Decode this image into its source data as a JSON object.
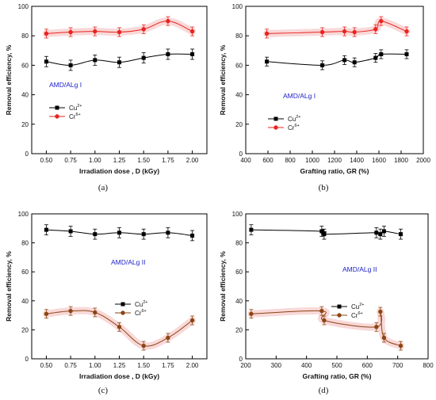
{
  "colors": {
    "cu": "#000000",
    "cr_red": "#e8241f",
    "cr_brown": "#8b4513",
    "title_blue": "#1f22c8",
    "band": "#f6c8c8"
  },
  "chart_data": [
    {
      "type": "line",
      "tag": "(a)",
      "title": "AMD/ALg I",
      "xlabel": "Irradiation dose  , D (kGy)",
      "ylabel": "Removal efficiency, %",
      "xlim": [
        0.35,
        2.15
      ],
      "ylim": [
        0,
        100
      ],
      "xticks": [
        "0.50",
        "0.75",
        "1.00",
        "1.25",
        "1.50",
        "1.75",
        "2.00"
      ],
      "xtick_values": [
        0.5,
        0.75,
        1.0,
        1.25,
        1.5,
        1.75,
        2.0
      ],
      "yticks": [
        "0",
        "20",
        "40",
        "60",
        "80",
        "100"
      ],
      "legend_position": "center-left",
      "series": [
        {
          "name": "Cu²⁺",
          "label": "Cu",
          "sup": "2+",
          "color": "#000000",
          "marker": "square",
          "x": [
            0.5,
            0.75,
            1.0,
            1.25,
            1.5,
            1.75,
            2.0
          ],
          "y": [
            62.5,
            60,
            63.5,
            62,
            65,
            67.5,
            67.5
          ],
          "err": 3.5,
          "band": false
        },
        {
          "name": "Cr⁶⁺",
          "label": "Cr",
          "sup": "6+",
          "color": "#e8241f",
          "marker": "circle",
          "x": [
            0.5,
            0.75,
            1.0,
            1.25,
            1.5,
            1.75,
            2.0
          ],
          "y": [
            81.5,
            82.5,
            83,
            82.5,
            84.5,
            90,
            83
          ],
          "err": 3,
          "band": true
        }
      ]
    },
    {
      "type": "line",
      "tag": "(b)",
      "title": "AMD/ALg I",
      "xlabel": "Grafting ratio, GR (%)",
      "ylabel": "Removal efficiency, %",
      "xlim": [
        400,
        2000
      ],
      "ylim": [
        0,
        100
      ],
      "xticks": [
        "400",
        "600",
        "800",
        "1000",
        "1200",
        "1400",
        "1600",
        "1800",
        "2000"
      ],
      "xtick_values": [
        400,
        600,
        800,
        1000,
        1200,
        1400,
        1600,
        1800,
        2000
      ],
      "yticks": [
        "0",
        "20",
        "40",
        "60",
        "80",
        "100"
      ],
      "legend_position": "center-left",
      "series": [
        {
          "name": "Cu²⁺",
          "label": "Cu",
          "sup": "2+",
          "color": "#000000",
          "marker": "square",
          "x": [
            590,
            1090,
            1290,
            1380,
            1570,
            1620,
            1850
          ],
          "y": [
            62.5,
            60,
            63.5,
            62,
            65,
            67.5,
            67.5
          ],
          "err": 3,
          "band": false
        },
        {
          "name": "Cr⁶⁺",
          "label": "Cr",
          "sup": "6+",
          "color": "#e8241f",
          "marker": "circle",
          "x": [
            590,
            1090,
            1290,
            1380,
            1570,
            1620,
            1850
          ],
          "y": [
            81.5,
            82.5,
            83,
            82.5,
            84.5,
            90,
            83
          ],
          "err": 3,
          "band": true
        }
      ]
    },
    {
      "type": "line",
      "tag": "(c)",
      "title": "AMD/ALg II",
      "xlabel": "Irradiation dose  , D (kGy)",
      "ylabel": "Removal efficiency, %",
      "xlim": [
        0.35,
        2.15
      ],
      "ylim": [
        0,
        100
      ],
      "xticks": [
        "0.50",
        "0.75",
        "1.00",
        "1.25",
        "1.50",
        "1.75",
        "2.00"
      ],
      "xtick_values": [
        0.5,
        0.75,
        1.0,
        1.25,
        1.5,
        1.75,
        2.0
      ],
      "yticks": [
        "0",
        "20",
        "40",
        "60",
        "80",
        "100"
      ],
      "legend_position": "center-right",
      "series": [
        {
          "name": "Cu²⁺",
          "label": "Cu",
          "sup": "2+",
          "color": "#000000",
          "marker": "square",
          "x": [
            0.5,
            0.75,
            1.0,
            1.25,
            1.5,
            1.75,
            2.0
          ],
          "y": [
            89,
            88,
            86,
            87,
            86,
            87,
            85
          ],
          "err": 3.5,
          "band": false
        },
        {
          "name": "Cr⁶⁺",
          "label": "Cr",
          "sup": "6+",
          "color": "#8b4513",
          "marker": "circle",
          "x": [
            0.5,
            0.75,
            1.0,
            1.25,
            1.5,
            1.75,
            2.0
          ],
          "y": [
            31,
            33,
            32,
            22,
            9,
            14.5,
            26.5
          ],
          "err": 3,
          "band": true
        }
      ]
    },
    {
      "type": "line",
      "tag": "(d)",
      "title": "AMD/ALg  II",
      "xlabel": "Grafting ratio, GR (%)",
      "ylabel": "Removal efficiency, %",
      "xlim": [
        200,
        800
      ],
      "ylim": [
        0,
        100
      ],
      "xticks": [
        "200",
        "300",
        "400",
        "500",
        "600",
        "700",
        "800"
      ],
      "xtick_values": [
        200,
        300,
        400,
        500,
        600,
        700,
        800
      ],
      "yticks": [
        "0",
        "20",
        "40",
        "60",
        "80",
        "100"
      ],
      "legend_position": "center-right",
      "series": [
        {
          "name": "Cu²⁺",
          "label": "Cu",
          "sup": "2+",
          "color": "#000000",
          "marker": "square",
          "x": [
            218,
            450,
            458,
            630,
            643,
            655,
            710
          ],
          "y": [
            89,
            88,
            86,
            87,
            86,
            88,
            86
          ],
          "err": 3.5,
          "band": false
        },
        {
          "name": "Cr⁶⁺",
          "label": "Cr",
          "sup": "6+",
          "color": "#8b4513",
          "marker": "circle",
          "x": [
            218,
            450,
            458,
            630,
            643,
            655,
            710
          ],
          "y": [
            31,
            33,
            26.5,
            22,
            32.5,
            14.5,
            9
          ],
          "err": 3,
          "band": true
        }
      ]
    }
  ]
}
